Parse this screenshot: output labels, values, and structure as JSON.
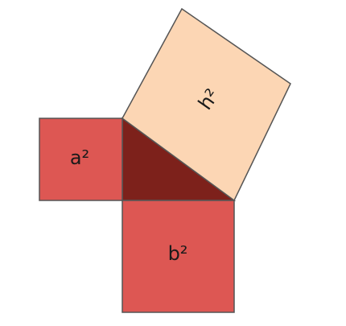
{
  "diagram": {
    "labels": {
      "square_a": "a²",
      "square_b": "b²",
      "square_h": "h²"
    },
    "colors": {
      "square_a_fill": "#dd5753",
      "square_b_fill": "#dd5753",
      "square_h_fill": "#fcd6b4",
      "triangle_fill": "#7d211b",
      "outline": "#555555"
    }
  }
}
